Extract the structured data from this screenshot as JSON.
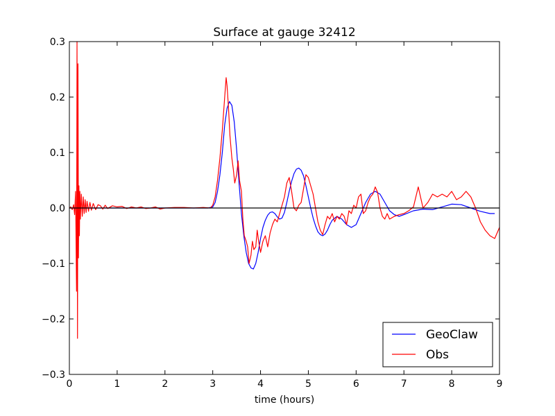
{
  "chart_data": {
    "type": "line",
    "title": "Surface at gauge 32412",
    "xlabel": "time (hours)",
    "ylabel": "",
    "xlim": [
      0,
      9
    ],
    "ylim": [
      -0.3,
      0.3
    ],
    "xticks": [
      0,
      1,
      2,
      3,
      4,
      5,
      6,
      7,
      8,
      9
    ],
    "xtick_labels": [
      "0",
      "1",
      "2",
      "3",
      "4",
      "5",
      "6",
      "7",
      "8",
      "9"
    ],
    "yticks": [
      -0.3,
      -0.2,
      -0.1,
      0.0,
      0.1,
      0.2,
      0.3
    ],
    "ytick_labels": [
      "−0.3",
      "−0.2",
      "−0.1",
      "0.0",
      "0.1",
      "0.2",
      "0.3"
    ],
    "hline": 0.0,
    "legend_position": "lower-right",
    "series": [
      {
        "name": "GeoClaw",
        "color": "#0000ff",
        "x": [
          0.0,
          0.5,
          1.0,
          1.5,
          2.0,
          2.5,
          2.9,
          3.0,
          3.05,
          3.1,
          3.15,
          3.2,
          3.25,
          3.3,
          3.35,
          3.4,
          3.45,
          3.5,
          3.55,
          3.6,
          3.65,
          3.7,
          3.75,
          3.8,
          3.85,
          3.9,
          3.95,
          4.0,
          4.05,
          4.1,
          4.15,
          4.2,
          4.25,
          4.3,
          4.35,
          4.4,
          4.45,
          4.5,
          4.55,
          4.6,
          4.65,
          4.7,
          4.75,
          4.8,
          4.85,
          4.9,
          4.95,
          5.0,
          5.05,
          5.1,
          5.15,
          5.2,
          5.25,
          5.3,
          5.35,
          5.4,
          5.45,
          5.5,
          5.6,
          5.7,
          5.8,
          5.9,
          6.0,
          6.1,
          6.2,
          6.3,
          6.4,
          6.5,
          6.6,
          6.7,
          6.8,
          6.9,
          7.0,
          7.2,
          7.4,
          7.6,
          7.8,
          8.0,
          8.2,
          8.4,
          8.6,
          8.8,
          8.9
        ],
        "values": [
          0.0,
          0.0,
          0.0,
          0.0,
          0.0,
          0.0,
          0.0,
          0.002,
          0.01,
          0.03,
          0.06,
          0.1,
          0.15,
          0.18,
          0.192,
          0.185,
          0.155,
          0.105,
          0.045,
          -0.01,
          -0.05,
          -0.08,
          -0.1,
          -0.108,
          -0.11,
          -0.1,
          -0.08,
          -0.055,
          -0.035,
          -0.022,
          -0.013,
          -0.008,
          -0.007,
          -0.01,
          -0.016,
          -0.02,
          -0.018,
          -0.008,
          0.01,
          0.03,
          0.048,
          0.062,
          0.07,
          0.072,
          0.068,
          0.058,
          0.04,
          0.02,
          0.0,
          -0.018,
          -0.032,
          -0.043,
          -0.048,
          -0.05,
          -0.047,
          -0.04,
          -0.03,
          -0.022,
          -0.015,
          -0.02,
          -0.03,
          -0.035,
          -0.03,
          -0.01,
          0.01,
          0.025,
          0.03,
          0.025,
          0.01,
          -0.005,
          -0.012,
          -0.015,
          -0.012,
          -0.005,
          -0.002,
          -0.003,
          0.002,
          0.007,
          0.006,
          0.0,
          -0.006,
          -0.01,
          -0.01
        ]
      },
      {
        "name": "Obs",
        "color": "#ff0000",
        "x": [
          0.0,
          0.03,
          0.06,
          0.09,
          0.11,
          0.13,
          0.15,
          0.16,
          0.17,
          0.18,
          0.19,
          0.2,
          0.21,
          0.22,
          0.23,
          0.25,
          0.27,
          0.29,
          0.31,
          0.33,
          0.35,
          0.37,
          0.4,
          0.43,
          0.46,
          0.5,
          0.55,
          0.6,
          0.65,
          0.7,
          0.75,
          0.8,
          0.9,
          1.0,
          1.1,
          1.2,
          1.3,
          1.4,
          1.5,
          1.6,
          1.7,
          1.8,
          1.9,
          2.0,
          2.2,
          2.4,
          2.6,
          2.8,
          2.95,
          3.0,
          3.05,
          3.1,
          3.15,
          3.2,
          3.25,
          3.28,
          3.3,
          3.33,
          3.36,
          3.4,
          3.43,
          3.46,
          3.5,
          3.53,
          3.56,
          3.6,
          3.63,
          3.66,
          3.7,
          3.73,
          3.76,
          3.8,
          3.83,
          3.86,
          3.9,
          3.93,
          3.96,
          4.0,
          4.05,
          4.1,
          4.15,
          4.2,
          4.25,
          4.3,
          4.35,
          4.4,
          4.45,
          4.5,
          4.55,
          4.6,
          4.65,
          4.7,
          4.75,
          4.8,
          4.85,
          4.9,
          4.95,
          5.0,
          5.05,
          5.1,
          5.15,
          5.2,
          5.25,
          5.3,
          5.35,
          5.4,
          5.45,
          5.5,
          5.55,
          5.6,
          5.65,
          5.7,
          5.75,
          5.8,
          5.85,
          5.9,
          5.95,
          6.0,
          6.05,
          6.1,
          6.15,
          6.2,
          6.25,
          6.3,
          6.35,
          6.4,
          6.45,
          6.5,
          6.55,
          6.6,
          6.65,
          6.7,
          6.8,
          6.9,
          7.0,
          7.1,
          7.2,
          7.3,
          7.4,
          7.5,
          7.6,
          7.7,
          7.8,
          7.9,
          8.0,
          8.1,
          8.2,
          8.3,
          8.4,
          8.5,
          8.6,
          8.7,
          8.8,
          8.9,
          9.0
        ],
        "values": [
          0.0,
          0.002,
          -0.003,
          0.006,
          -0.012,
          0.03,
          -0.15,
          0.3,
          -0.235,
          0.26,
          -0.09,
          0.04,
          -0.05,
          0.03,
          -0.02,
          0.025,
          -0.015,
          0.02,
          -0.01,
          0.015,
          -0.008,
          0.012,
          -0.006,
          0.01,
          -0.004,
          0.008,
          -0.003,
          0.006,
          0.004,
          -0.002,
          0.005,
          -0.001,
          0.004,
          0.002,
          0.003,
          -0.001,
          0.002,
          0.0,
          0.002,
          -0.001,
          0.0,
          0.002,
          -0.002,
          0.0,
          0.001,
          0.001,
          0.0,
          0.001,
          0.0,
          0.005,
          0.02,
          0.05,
          0.09,
          0.14,
          0.2,
          0.235,
          0.22,
          0.18,
          0.13,
          0.09,
          0.07,
          0.045,
          0.06,
          0.085,
          0.05,
          0.03,
          -0.02,
          -0.05,
          -0.06,
          -0.07,
          -0.1,
          -0.085,
          -0.06,
          -0.075,
          -0.07,
          -0.04,
          -0.06,
          -0.08,
          -0.06,
          -0.05,
          -0.07,
          -0.045,
          -0.03,
          -0.02,
          -0.025,
          -0.01,
          0.005,
          0.02,
          0.045,
          0.055,
          0.03,
          0.0,
          -0.005,
          0.005,
          0.01,
          0.035,
          0.06,
          0.055,
          0.04,
          0.025,
          0.0,
          -0.025,
          -0.04,
          -0.048,
          -0.03,
          -0.015,
          -0.02,
          -0.01,
          -0.025,
          -0.015,
          -0.02,
          -0.01,
          -0.015,
          -0.03,
          -0.005,
          -0.01,
          0.005,
          0.0,
          0.02,
          0.025,
          -0.01,
          -0.005,
          0.01,
          0.02,
          0.025,
          0.038,
          0.028,
          0.0,
          -0.015,
          -0.02,
          -0.01,
          -0.02,
          -0.015,
          -0.012,
          -0.01,
          -0.005,
          0.002,
          0.038,
          0.0,
          0.01,
          0.025,
          0.02,
          0.025,
          0.02,
          0.03,
          0.015,
          0.02,
          0.03,
          0.02,
          0.0,
          -0.025,
          -0.04,
          -0.05,
          -0.055,
          -0.035
        ]
      }
    ]
  }
}
